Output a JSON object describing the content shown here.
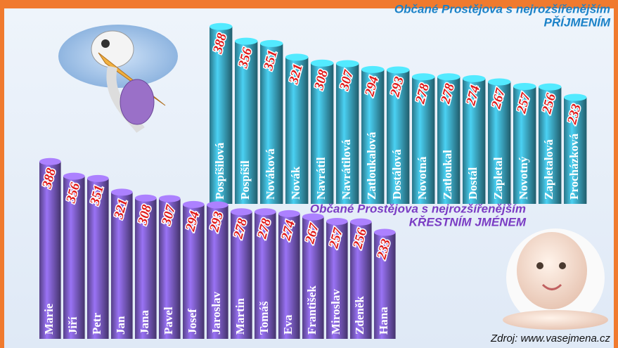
{
  "chart_data": [
    {
      "type": "bar",
      "title": "Občané Prostějova s nejrozšířenějším",
      "subtitle": "PŘÍJMENÍM",
      "color": "#3ba7c2",
      "categories": [
        "Pospíšilová",
        "Pospíšil",
        "Nováková",
        "Novák",
        "Navrátil",
        "Navrátilová",
        "Zatloukalová",
        "Dostálová",
        "Novotná",
        "Zatloukal",
        "Dostál",
        "Zapletal",
        "Novotný",
        "Zapletalová",
        "Procházková"
      ],
      "values": [
        388,
        356,
        351,
        321,
        308,
        307,
        294,
        293,
        278,
        278,
        274,
        267,
        257,
        256,
        233
      ],
      "ylim": [
        0,
        400
      ]
    },
    {
      "type": "bar",
      "title": "Občané Prostějova s nejrozšířenějším",
      "subtitle": "KŘESTNÍM JMÉNEM",
      "color": "#7b5cc4",
      "categories": [
        "Marie",
        "Jiří",
        "Petr",
        "Jan",
        "Jana",
        "Pavel",
        "Josef",
        "Jaroslav",
        "Martin",
        "Tomáš",
        "Eva",
        "František",
        "Miroslav",
        "Zdeněk",
        "Hana"
      ],
      "values": [
        388,
        356,
        351,
        321,
        308,
        307,
        294,
        293,
        278,
        278,
        274,
        267,
        257,
        256,
        233
      ],
      "ylim": [
        0,
        400
      ]
    }
  ],
  "source": "Zdroj: www.vasejmena.cz"
}
